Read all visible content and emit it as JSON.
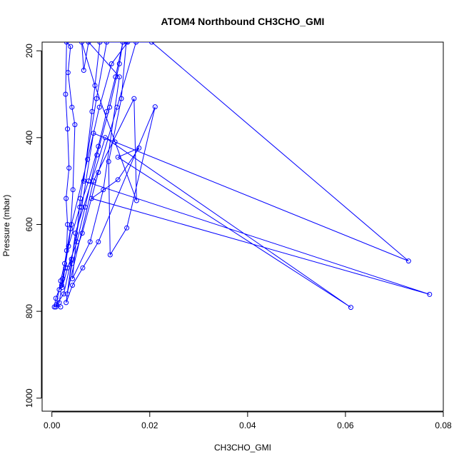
{
  "chart_data": {
    "type": "line",
    "title": "ATOM4 Northbound CH3CHO_GMI",
    "xlabel": "CH3CHO_GMI",
    "ylabel": "Pressure (mbar)",
    "xlim": [
      -0.002,
      0.08
    ],
    "ylim": [
      1030,
      180
    ],
    "y_reversed": true,
    "x_ticks": [
      0.0,
      0.02,
      0.04,
      0.06,
      0.08
    ],
    "x_tick_labels": [
      "0.00",
      "0.02",
      "0.04",
      "0.06",
      "0.08"
    ],
    "y_ticks": [
      200,
      400,
      600,
      800,
      1000
    ],
    "y_tick_labels": [
      "200",
      "400",
      "600",
      "800",
      "1000"
    ],
    "grid": false,
    "legend": "none",
    "colors": {
      "series": "#0000ff",
      "axes": "#000000",
      "background": "#ffffff"
    },
    "series": [
      {
        "values": [
          {
            "x": 0.0005,
            "y": 790
          },
          {
            "x": 0.0008,
            "y": 770
          },
          {
            "x": 0.0015,
            "y": 750
          },
          {
            "x": 0.0022,
            "y": 725
          },
          {
            "x": 0.0028,
            "y": 700
          },
          {
            "x": 0.003,
            "y": 660
          },
          {
            "x": 0.0032,
            "y": 600
          },
          {
            "x": 0.0029,
            "y": 540
          },
          {
            "x": 0.0035,
            "y": 470
          },
          {
            "x": 0.0032,
            "y": 380
          },
          {
            "x": 0.0028,
            "y": 300
          },
          {
            "x": 0.003,
            "y": 180
          },
          {
            "x": 0.0038,
            "y": 190
          },
          {
            "x": 0.0033,
            "y": 250
          },
          {
            "x": 0.0041,
            "y": 330
          },
          {
            "x": 0.0047,
            "y": 370
          },
          {
            "x": 0.0043,
            "y": 520
          },
          {
            "x": 0.0038,
            "y": 610
          },
          {
            "x": 0.0026,
            "y": 690
          },
          {
            "x": 0.002,
            "y": 740
          },
          {
            "x": 0.0015,
            "y": 780
          },
          {
            "x": 0.0008,
            "y": 790
          },
          {
            "x": 0.0018,
            "y": 730
          },
          {
            "x": 0.0034,
            "y": 650
          },
          {
            "x": 0.0057,
            "y": 560
          },
          {
            "x": 0.0075,
            "y": 500
          },
          {
            "x": 0.0095,
            "y": 420
          },
          {
            "x": 0.0112,
            "y": 340
          },
          {
            "x": 0.013,
            "y": 260
          },
          {
            "x": 0.0145,
            "y": 180
          },
          {
            "x": 0.0138,
            "y": 230
          },
          {
            "x": 0.0118,
            "y": 330
          },
          {
            "x": 0.0092,
            "y": 440
          },
          {
            "x": 0.0068,
            "y": 560
          },
          {
            "x": 0.0051,
            "y": 640
          },
          {
            "x": 0.0032,
            "y": 700
          },
          {
            "x": 0.0021,
            "y": 745
          },
          {
            "x": 0.004,
            "y": 600
          },
          {
            "x": 0.0073,
            "y": 450
          },
          {
            "x": 0.0097,
            "y": 330
          },
          {
            "x": 0.0122,
            "y": 230
          },
          {
            "x": 0.0155,
            "y": 180
          },
          {
            "x": 0.0172,
            "y": 180
          },
          {
            "x": 0.0133,
            "y": 330
          },
          {
            "x": 0.0095,
            "y": 480
          },
          {
            "x": 0.0062,
            "y": 620
          },
          {
            "x": 0.0041,
            "y": 690
          },
          {
            "x": 0.0031,
            "y": 760
          },
          {
            "x": 0.0085,
            "y": 500
          },
          {
            "x": 0.0168,
            "y": 310
          },
          {
            "x": 0.0173,
            "y": 545
          },
          {
            "x": 0.0129,
            "y": 410
          },
          {
            "x": 0.0088,
            "y": 280
          },
          {
            "x": 0.0061,
            "y": 180
          },
          {
            "x": 0.0065,
            "y": 245
          },
          {
            "x": 0.0075,
            "y": 180
          },
          {
            "x": 0.0138,
            "y": 260
          },
          {
            "x": 0.0105,
            "y": 520
          },
          {
            "x": 0.0078,
            "y": 640
          },
          {
            "x": 0.0042,
            "y": 725
          },
          {
            "x": 0.0058,
            "y": 540
          },
          {
            "x": 0.0091,
            "y": 310
          },
          {
            "x": 0.0112,
            "y": 180
          },
          {
            "x": 0.0152,
            "y": 180
          },
          {
            "x": 0.0142,
            "y": 310
          },
          {
            "x": 0.0116,
            "y": 455
          },
          {
            "x": 0.0119,
            "y": 670
          },
          {
            "x": 0.0153,
            "y": 608
          },
          {
            "x": 0.0211,
            "y": 329
          },
          {
            "x": 0.0095,
            "y": 640
          },
          {
            "x": 0.0063,
            "y": 700
          },
          {
            "x": 0.0042,
            "y": 740
          },
          {
            "x": 0.0029,
            "y": 780
          },
          {
            "x": 0.0048,
            "y": 620
          },
          {
            "x": 0.0109,
            "y": 400
          },
          {
            "x": 0.0611,
            "y": 791
          },
          {
            "x": 0.0135,
            "y": 445
          },
          {
            "x": 0.0178,
            "y": 424
          },
          {
            "x": 0.0135,
            "y": 497
          },
          {
            "x": 0.0081,
            "y": 540
          },
          {
            "x": 0.0772,
            "y": 761
          },
          {
            "x": 0.0065,
            "y": 500
          },
          {
            "x": 0.0082,
            "y": 340
          },
          {
            "x": 0.0098,
            "y": 180
          },
          {
            "x": 0.0204,
            "y": 180
          },
          {
            "x": 0.0729,
            "y": 684
          },
          {
            "x": 0.0085,
            "y": 390
          },
          {
            "x": 0.0061,
            "y": 560
          },
          {
            "x": 0.004,
            "y": 680
          },
          {
            "x": 0.0024,
            "y": 760
          },
          {
            "x": 0.0009,
            "y": 785
          },
          {
            "x": 0.0018,
            "y": 790
          }
        ]
      }
    ]
  }
}
